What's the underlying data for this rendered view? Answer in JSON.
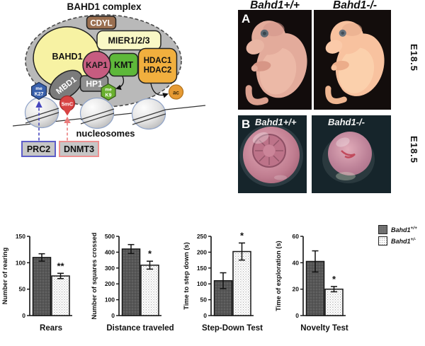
{
  "colors": {
    "dark_bar": "#565656",
    "light_bar": "#ffffff",
    "complex_gray": "#b9b9b9",
    "bahd1_yellow": "#f7f2a3",
    "mier_yellow": "#f9f8c6",
    "cdyl_brown": "#9a6f50",
    "kap1_pink": "#c65c80",
    "kmt_green": "#5eb83a",
    "hdac_orange": "#f1af3e",
    "me_k27_blue": "#3a61ac",
    "me_k9_green": "#6ab02f",
    "five_mc_red": "#d84343",
    "ac_orange": "#e69a33",
    "prc2_border": "#5d5dc8",
    "dnmt3_border": "#ee9090"
  },
  "diagram": {
    "title": "BAHD1 complex",
    "nodes": {
      "bahd1": "BAHD1",
      "cdyl": "CDYL",
      "mier": "MIER1/2/3",
      "kap1": "KAP1",
      "kmt": "KMT",
      "hdac1": "HDAC1",
      "hdac2": "HDAC2",
      "mbd1": "MBD1",
      "hp1": "HP1"
    },
    "marks": {
      "me_k27": {
        "top": "me",
        "bottom": "K27"
      },
      "me_k9": {
        "top": "me",
        "bottom": "K9"
      },
      "five_mc": "5mC",
      "ac": "ac"
    },
    "nucleosomes_label": "nucleosomes",
    "prc2": "PRC2",
    "dnmt3": "DNMT3"
  },
  "photos": {
    "panel_a": {
      "letter": "A",
      "left_title": "Bahd1+/+",
      "right_title": "Bahd1-/-",
      "stage": "E18.5"
    },
    "panel_b": {
      "letter": "B",
      "left_label": "Bahd1+/+",
      "right_label": "Bahd1-/-",
      "stage": "E18.5"
    }
  },
  "legend": {
    "items": [
      {
        "gene": "Bahd1",
        "genotype": "+/+",
        "swatch": "dark"
      },
      {
        "gene": "Bahd1",
        "genotype": "+/-",
        "swatch": "light"
      }
    ]
  },
  "chart_data": [
    {
      "type": "bar",
      "ylabel": "Number of rearing",
      "xlabel": "Rears",
      "ylim": [
        0,
        150
      ],
      "yticks": [
        0,
        50,
        100,
        150
      ],
      "groups": [
        "Bahd1+/+",
        "Bahd1+/-"
      ],
      "values": [
        110,
        75
      ],
      "errors": [
        7,
        5
      ],
      "significance": "**",
      "significance_on": "Bahd1+/-"
    },
    {
      "type": "bar",
      "ylabel": "Number of squares crossed",
      "xlabel": "Distance traveled",
      "ylim": [
        0,
        500
      ],
      "yticks": [
        0,
        100,
        200,
        300,
        400,
        500
      ],
      "groups": [
        "Bahd1+/+",
        "Bahd1+/-"
      ],
      "values": [
        420,
        318
      ],
      "errors": [
        28,
        25
      ],
      "significance": "*",
      "significance_on": "Bahd1+/-"
    },
    {
      "type": "bar",
      "ylabel": "Time to step down (s)",
      "xlabel": "Step-Down Test",
      "ylim": [
        0,
        250
      ],
      "yticks": [
        0,
        50,
        100,
        150,
        200,
        250
      ],
      "groups": [
        "Bahd1+/+",
        "Bahd1+/-"
      ],
      "values": [
        110,
        202
      ],
      "errors": [
        25,
        27
      ],
      "significance": "*",
      "significance_on": "Bahd1+/-"
    },
    {
      "type": "bar",
      "ylabel": "Time of exploration (s)",
      "xlabel": "Novelty Test",
      "ylim": [
        0,
        60
      ],
      "yticks": [
        0,
        20,
        40,
        60
      ],
      "groups": [
        "Bahd1+/+",
        "Bahd1+/-"
      ],
      "values": [
        41,
        20
      ],
      "errors": [
        8,
        2
      ],
      "significance": "*",
      "significance_on": "Bahd1+/-"
    }
  ]
}
